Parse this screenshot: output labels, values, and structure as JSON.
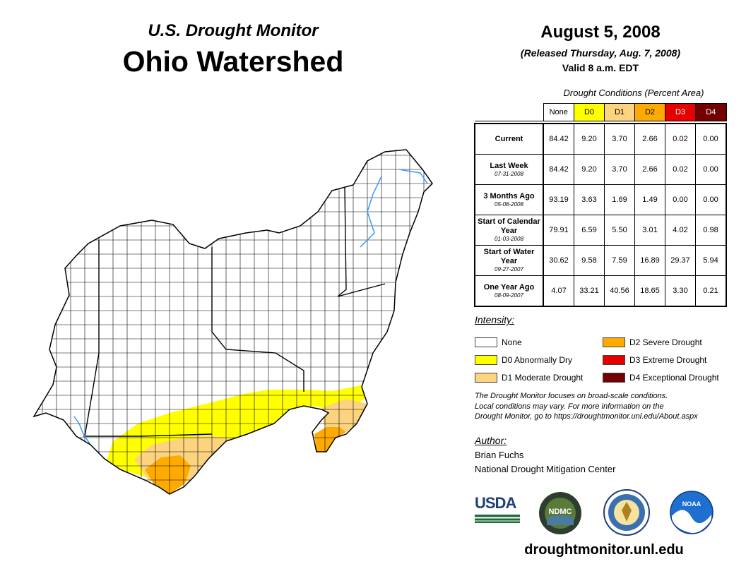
{
  "header": {
    "subtitle": "U.S. Drought Monitor",
    "title": "Ohio Watershed",
    "date": "August 5, 2008",
    "released": "(Released Thursday, Aug. 7, 2008)",
    "valid": "Valid 8 a.m. EDT"
  },
  "table": {
    "caption": "Drought Conditions (Percent Area)",
    "categories": [
      "None",
      "D0",
      "D1",
      "D2",
      "D3",
      "D4"
    ],
    "category_colors": [
      "#ffffff",
      "#ffff00",
      "#fcd37f",
      "#ffaa00",
      "#e60000",
      "#730000"
    ],
    "rows": [
      {
        "label": "Current",
        "date": "",
        "values": [
          "84.42",
          "9.20",
          "3.70",
          "2.66",
          "0.02",
          "0.00"
        ]
      },
      {
        "label": "Last Week",
        "date": "07-31-2008",
        "values": [
          "84.42",
          "9.20",
          "3.70",
          "2.66",
          "0.02",
          "0.00"
        ]
      },
      {
        "label": "3 Months Ago",
        "date": "05-08-2008",
        "values": [
          "93.19",
          "3.63",
          "1.69",
          "1.49",
          "0.00",
          "0.00"
        ]
      },
      {
        "label": "Start of Calendar Year",
        "date": "01-03-2008",
        "values": [
          "79.91",
          "6.59",
          "5.50",
          "3.01",
          "4.02",
          "0.98"
        ]
      },
      {
        "label": "Start of Water Year",
        "date": "09-27-2007",
        "values": [
          "30.62",
          "9.58",
          "7.59",
          "16.89",
          "29.37",
          "5.94"
        ]
      },
      {
        "label": "One Year Ago",
        "date": "08-09-2007",
        "values": [
          "4.07",
          "33.21",
          "40.56",
          "18.65",
          "3.30",
          "0.21"
        ]
      }
    ]
  },
  "legend": {
    "title": "Intensity:",
    "items": [
      {
        "label": "None",
        "color": "#ffffff"
      },
      {
        "label": "D0 Abnormally Dry",
        "color": "#ffff00"
      },
      {
        "label": "D1 Moderate Drought",
        "color": "#fcd37f"
      },
      {
        "label": "D2 Severe Drought",
        "color": "#ffaa00"
      },
      {
        "label": "D3 Extreme Drought",
        "color": "#e60000"
      },
      {
        "label": "D4 Exceptional Drought",
        "color": "#730000"
      }
    ]
  },
  "note": {
    "line1": "The Drought Monitor focuses on broad-scale conditions.",
    "line2": "Local conditions may vary. For more information on the",
    "line3": "Drought Monitor, go to https://droughtmonitor.unl.edu/About.aspx"
  },
  "author": {
    "title": "Author:",
    "name": "Brian Fuchs",
    "org": "National Drought Mitigation Center"
  },
  "logos": {
    "usda": "USDA",
    "ndmc": "NDMC",
    "noaa": "NOAA"
  },
  "website": "droughtmonitor.unl.edu",
  "map": {
    "icons": [
      "ohio-watershed-map",
      "county-boundaries",
      "river-icon"
    ]
  }
}
